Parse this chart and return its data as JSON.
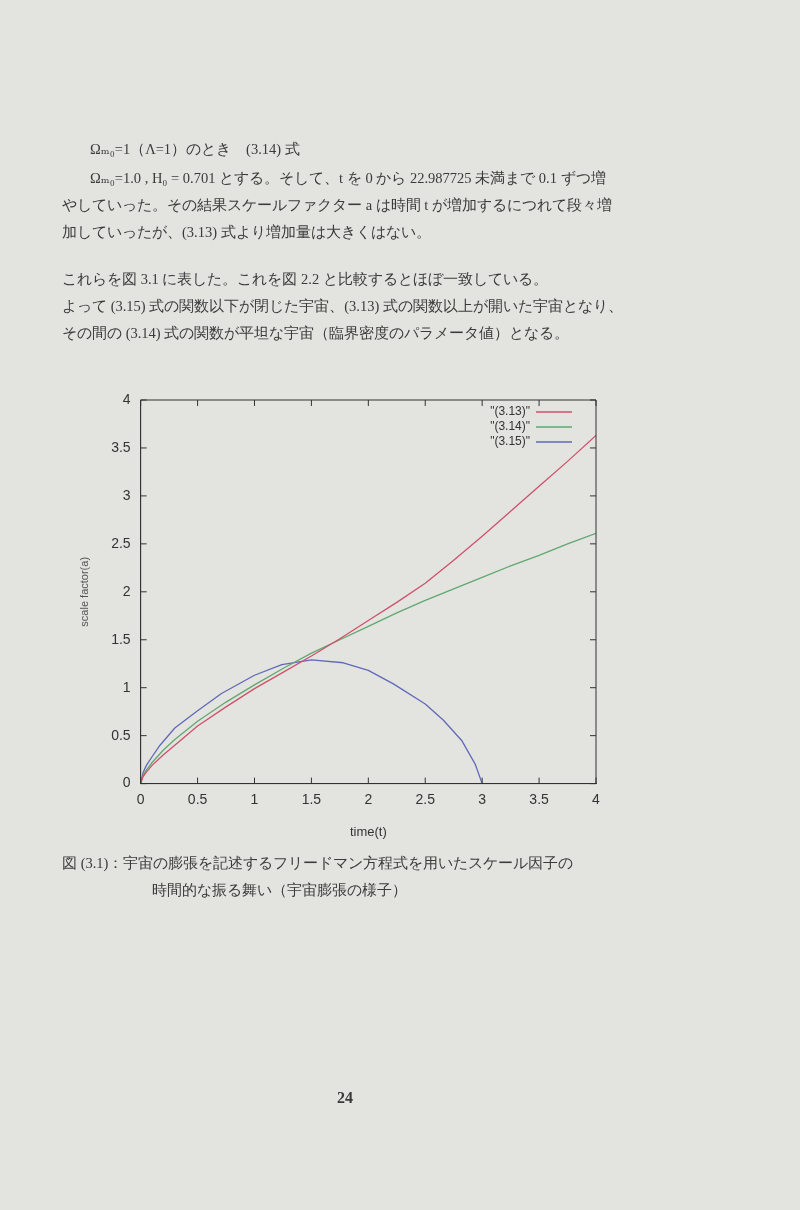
{
  "chart_data": {
    "type": "line",
    "xlabel": "time(t)",
    "ylabel": "scale factor(a)",
    "annotations": [
      "Ωₘ₀=1（Λ=1）のとき　(3.14) 式",
      "Ωₘ₀=1.0 , H₀ = 0.701 とする。そして、t を 0 から 22.987725 未満まで 0.1 ずつ増やしていった。その結果スケールファクター a は時間 t が増加するにつれて段々増加していったが、(3.13) 式より増加量は大きくはない。",
      "これらを図 3.1 に表した。これを図 2.2 と比較するとほぼ一致している。",
      "よって (3.15) 式の関数以下が閉じた宇宙、(3.13) 式の関数以上が開いた宇宙となり、",
      "その間の (3.14) 式の関数が平坦な宇宙（臨界密度のパラメータ値）となる。",
      "図 (3.1)：宇宙の膨張を記述するフリードマン方程式を用いたスケール因子の時間的な振る舞い（宇宙膨張の様子）",
      "24"
    ],
    "series": [
      {
        "name": "\"(3.13)\"",
        "color": "#d0506a",
        "x": [
          0,
          0.02,
          0.05,
          0.1,
          0.2,
          0.3,
          0.5,
          0.75,
          1,
          1.25,
          1.5,
          1.75,
          2,
          2.25,
          2.5,
          2.75,
          3,
          3.25,
          3.5,
          3.75,
          4
        ],
        "values": [
          0,
          0.07,
          0.12,
          0.19,
          0.3,
          0.4,
          0.6,
          0.8,
          0.99,
          1.16,
          1.33,
          1.51,
          1.7,
          1.89,
          2.09,
          2.33,
          2.58,
          2.84,
          3.1,
          3.36,
          3.63
        ]
      },
      {
        "name": "\"(3.14)\"",
        "color": "#60a870",
        "x": [
          0,
          0.02,
          0.05,
          0.1,
          0.2,
          0.3,
          0.5,
          0.75,
          1,
          1.25,
          1.5,
          1.75,
          2,
          2.25,
          2.5,
          2.75,
          3,
          3.25,
          3.5,
          3.75,
          4
        ],
        "values": [
          0,
          0.08,
          0.14,
          0.22,
          0.35,
          0.46,
          0.65,
          0.85,
          1.03,
          1.2,
          1.36,
          1.5,
          1.64,
          1.78,
          1.91,
          2.03,
          2.15,
          2.27,
          2.38,
          2.5,
          2.61
        ]
      },
      {
        "name": "\"(3.15)\"",
        "color": "#6068b8",
        "x": [
          0,
          0.02,
          0.05,
          0.1,
          0.17,
          0.3,
          0.5,
          0.71,
          1,
          1.24,
          1.5,
          1.78,
          2,
          2.22,
          2.5,
          2.66,
          2.82,
          2.94,
          3
        ],
        "values": [
          0,
          0.11,
          0.19,
          0.28,
          0.4,
          0.58,
          0.76,
          0.94,
          1.13,
          1.24,
          1.29,
          1.26,
          1.18,
          1.04,
          0.83,
          0.66,
          0.45,
          0.2,
          0
        ]
      }
    ],
    "xlim": [
      0,
      4
    ],
    "ylim": [
      0,
      4
    ],
    "xticks": [
      0,
      0.5,
      1,
      1.5,
      2,
      2.5,
      3,
      3.5,
      4
    ],
    "yticks": [
      0,
      0.5,
      1,
      1.5,
      2,
      2.5,
      3,
      3.5,
      4
    ],
    "legend": "top right"
  }
}
